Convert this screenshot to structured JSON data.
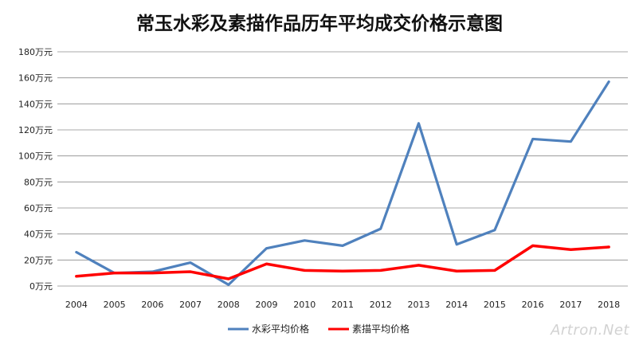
{
  "chart_data": {
    "type": "line",
    "title": "常玉水彩及素描作品历年平均成交价格示意图",
    "categories": [
      "2004",
      "2005",
      "2006",
      "2007",
      "2008",
      "2009",
      "2010",
      "2011",
      "2012",
      "2013",
      "2014",
      "2015",
      "2016",
      "2017",
      "2018"
    ],
    "series": [
      {
        "name": "水彩平均价格",
        "color": "#4F81BD",
        "values": [
          26,
          10,
          11,
          18,
          1,
          29,
          35,
          31,
          44,
          125,
          32,
          43,
          113,
          111,
          157
        ]
      },
      {
        "name": "素描平均价格",
        "color": "#FF0000",
        "values": [
          7.5,
          10,
          10,
          11,
          5.5,
          17,
          12,
          11.5,
          12,
          16,
          11.5,
          12,
          31,
          28,
          30
        ]
      }
    ],
    "ylim": [
      0,
      180
    ],
    "yticks": [
      "0万元",
      "20万元",
      "40万元",
      "60万元",
      "80万元",
      "100万元",
      "120万元",
      "140万元",
      "160万元",
      "180万元"
    ],
    "grid": true,
    "legend_position": "bottom"
  },
  "watermark": "Artron.Net"
}
